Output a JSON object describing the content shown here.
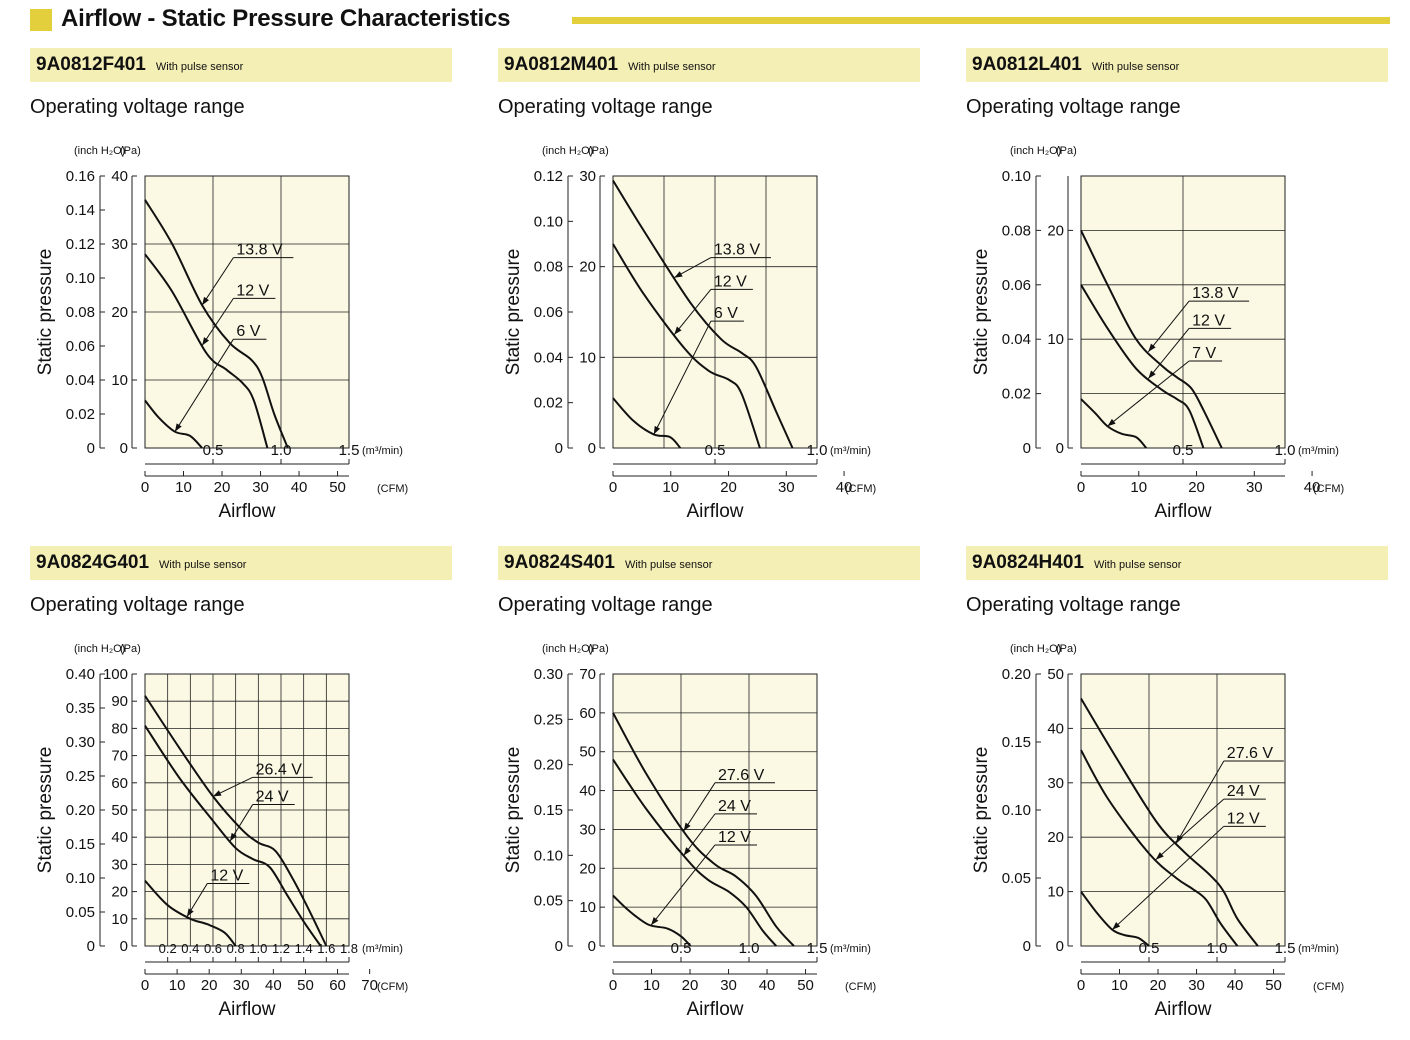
{
  "header": {
    "title": "Airflow - Static Pressure Characteristics"
  },
  "panels": [
    {
      "model": "9A0812F401",
      "sensor": "With pulse sensor",
      "subtitle": "Operating voltage range",
      "left_unit": "(inch H₂O)",
      "right_unit": "(Pa)",
      "x_unit_top": "(m³/min)",
      "x_unit_bottom": "(CFM)",
      "ylabel": "Static pressure",
      "xlabel": "Airflow"
    },
    {
      "model": "9A0812M401",
      "sensor": "With pulse sensor",
      "subtitle": "Operating voltage range",
      "left_unit": "(inch H₂O)",
      "right_unit": "(Pa)",
      "x_unit_top": "(m³/min)",
      "x_unit_bottom": "(CFM)",
      "ylabel": "Static pressure",
      "xlabel": "Airflow"
    },
    {
      "model": "9A0812L401",
      "sensor": "With pulse sensor",
      "subtitle": "Operating voltage range",
      "left_unit": "(inch H₂O)",
      "right_unit": "(Pa)",
      "x_unit_top": "(m³/min)",
      "x_unit_bottom": "(CFM)",
      "ylabel": "Static pressure",
      "xlabel": "Airflow"
    },
    {
      "model": "9A0824G401",
      "sensor": "With pulse sensor",
      "subtitle": "Operating voltage range",
      "left_unit": "(inch H₂O)",
      "right_unit": "(Pa)",
      "x_unit_top": "(m³/min)",
      "x_unit_bottom": "(CFM)",
      "ylabel": "Static pressure",
      "xlabel": "Airflow"
    },
    {
      "model": "9A0824S401",
      "sensor": "With pulse sensor",
      "subtitle": "Operating voltage range",
      "left_unit": "(inch H₂O)",
      "right_unit": "(Pa)",
      "x_unit_top": "(m³/min)",
      "x_unit_bottom": "(CFM)",
      "ylabel": "Static pressure",
      "xlabel": "Airflow"
    },
    {
      "model": "9A0824H401",
      "sensor": "With pulse sensor",
      "subtitle": "Operating voltage range",
      "left_unit": "(inch H₂O)",
      "right_unit": "(Pa)",
      "x_unit_top": "(m³/min)",
      "x_unit_bottom": "(CFM)",
      "ylabel": "Static pressure",
      "xlabel": "Airflow"
    }
  ],
  "colors": {
    "plot_bg": "#fbf8e3",
    "model_bar": "#f4efb5",
    "accent": "#e3cf3b",
    "grid": "#222222"
  },
  "chart_data": [
    {
      "type": "line",
      "model": "9A0812F401",
      "xlim_m3min": [
        0,
        1.5
      ],
      "ylim_pa": [
        0,
        40
      ],
      "ylim_inh2o": [
        0,
        0.16
      ],
      "x_ticks_m3min": [
        0.5,
        1.0,
        1.5
      ],
      "x_tick_labels_m3min": [
        "0.5",
        "1.0",
        "1.5"
      ],
      "cfm_ticks": [
        0,
        10,
        20,
        30,
        40,
        50
      ],
      "cfm_tick_labels": [
        "0",
        "10",
        "20",
        "30",
        "40",
        "50"
      ],
      "pa_ticks": [
        0,
        10,
        20,
        30,
        40
      ],
      "pa_tick_labels": [
        "0",
        "10",
        "20",
        "30",
        "40"
      ],
      "inh2o_ticks": [
        0,
        0.02,
        0.04,
        0.06,
        0.08,
        0.1,
        0.12,
        0.14,
        0.16
      ],
      "inh2o_tick_labels": [
        "0",
        "0.02",
        "0.04",
        "0.06",
        "0.08",
        "0.10",
        "0.12",
        "0.14",
        "0.16"
      ],
      "grid_x": [
        0.5,
        1.0
      ],
      "grid_y": [
        10,
        20,
        30
      ],
      "grid": true,
      "series": [
        {
          "name": "13.8 V",
          "label": "13.8 V",
          "x": [
            0,
            0.2,
            0.42,
            0.62,
            0.78,
            0.86,
            0.95,
            1.05
          ],
          "y": [
            36.5,
            30,
            21,
            15.5,
            13,
            10.5,
            5,
            0
          ],
          "pointer_at": 0.42,
          "label_at": [
            0.65,
            28
          ]
        },
        {
          "name": "12 V",
          "label": "12 V",
          "x": [
            0,
            0.2,
            0.45,
            0.6,
            0.72,
            0.8,
            0.9
          ],
          "y": [
            28.5,
            23,
            14,
            11.5,
            9.5,
            7,
            0
          ],
          "pointer_at": 0.42,
          "label_at": [
            0.65,
            22
          ]
        },
        {
          "name": "6 V",
          "label": "6 V",
          "x": [
            0,
            0.1,
            0.22,
            0.33,
            0.42
          ],
          "y": [
            7,
            4.5,
            2.4,
            1.8,
            0
          ],
          "pointer_at": 0.22,
          "label_at": [
            0.65,
            16
          ]
        }
      ]
    },
    {
      "type": "line",
      "model": "9A0812M401",
      "xlim_m3min": [
        0,
        1.0
      ],
      "ylim_pa": [
        0,
        30
      ],
      "ylim_inh2o": [
        0,
        0.12
      ],
      "x_ticks_m3min": [
        0.5,
        1.0
      ],
      "x_tick_labels_m3min": [
        "0.5",
        "1.0"
      ],
      "cfm_ticks": [
        0,
        10,
        20,
        30,
        40
      ],
      "cfm_tick_labels": [
        "0",
        "10",
        "20",
        "30",
        "40"
      ],
      "pa_ticks": [
        0,
        10,
        20,
        30
      ],
      "pa_tick_labels": [
        "0",
        "10",
        "20",
        "30"
      ],
      "inh2o_ticks": [
        0,
        0.02,
        0.04,
        0.06,
        0.08,
        0.1,
        0.12
      ],
      "inh2o_tick_labels": [
        "0",
        "0.02",
        "0.04",
        "0.06",
        "0.08",
        "0.10",
        "0.12"
      ],
      "grid_x": [
        0.25,
        0.5,
        0.75
      ],
      "grid_y": [
        10,
        20
      ],
      "grid": true,
      "series": [
        {
          "name": "13.8 V",
          "label": "13.8 V",
          "x": [
            0,
            0.15,
            0.38,
            0.53,
            0.63,
            0.7,
            0.8,
            0.88
          ],
          "y": [
            29.5,
            24,
            16,
            12,
            10.5,
            9,
            4,
            0
          ],
          "pointer_at": 0.3,
          "label_at": [
            0.48,
            21
          ]
        },
        {
          "name": "12 V",
          "label": "12 V",
          "x": [
            0,
            0.15,
            0.35,
            0.47,
            0.57,
            0.63,
            0.72
          ],
          "y": [
            22.5,
            17,
            11,
            8.5,
            7.5,
            6,
            0
          ],
          "pointer_at": 0.3,
          "label_at": [
            0.48,
            17.5
          ]
        },
        {
          "name": "6 V",
          "label": "6 V",
          "x": [
            0,
            0.1,
            0.2,
            0.28,
            0.33
          ],
          "y": [
            5.5,
            3,
            1.5,
            1.2,
            0
          ],
          "pointer_at": 0.2,
          "label_at": [
            0.48,
            14
          ]
        }
      ]
    },
    {
      "type": "line",
      "model": "9A0812L401",
      "xlim_m3min": [
        0,
        1.0
      ],
      "ylim_pa": [
        0,
        25
      ],
      "ylim_inh2o": [
        0,
        0.1
      ],
      "x_ticks_m3min": [
        0.5,
        1.0
      ],
      "x_tick_labels_m3min": [
        "0.5",
        "1.0"
      ],
      "cfm_ticks": [
        0,
        10,
        20,
        30,
        40
      ],
      "cfm_tick_labels": [
        "0",
        "10",
        "20",
        "30",
        "40"
      ],
      "pa_ticks": [
        0,
        10,
        20
      ],
      "pa_tick_labels": [
        "0",
        "10",
        "20"
      ],
      "inh2o_ticks": [
        0,
        0.02,
        0.04,
        0.06,
        0.08,
        0.1
      ],
      "inh2o_tick_labels": [
        "0",
        "0.02",
        "0.04",
        "0.06",
        "0.08",
        "0.10"
      ],
      "grid_x": [
        0.5
      ],
      "grid_y": [
        5,
        10,
        15,
        20
      ],
      "grid": true,
      "series": [
        {
          "name": "13.8 V",
          "label": "13.8 V",
          "x": [
            0,
            0.13,
            0.27,
            0.4,
            0.47,
            0.54,
            0.6,
            0.69
          ],
          "y": [
            20,
            15,
            10,
            7.5,
            6.5,
            5.5,
            3.5,
            0
          ],
          "pointer_at": 0.33,
          "label_at": [
            0.53,
            13.5
          ]
        },
        {
          "name": "12 V",
          "label": "12 V",
          "x": [
            0,
            0.13,
            0.27,
            0.4,
            0.47,
            0.53,
            0.6
          ],
          "y": [
            15,
            11,
            7.3,
            5.3,
            4.5,
            3.5,
            0
          ],
          "pointer_at": 0.33,
          "label_at": [
            0.53,
            11
          ]
        },
        {
          "name": "7 V",
          "label": "7 V",
          "x": [
            0,
            0.07,
            0.13,
            0.2,
            0.27,
            0.32
          ],
          "y": [
            4.5,
            3.2,
            2,
            1.3,
            1,
            0
          ],
          "pointer_at": 0.13,
          "label_at": [
            0.53,
            8
          ]
        }
      ]
    },
    {
      "type": "line",
      "model": "9A0824G401",
      "xlim_m3min": [
        0,
        1.8
      ],
      "ylim_pa": [
        0,
        100
      ],
      "ylim_inh2o": [
        0,
        0.4
      ],
      "x_ticks_m3min": [
        0.2,
        0.4,
        0.6,
        0.8,
        1.0,
        1.2,
        1.4,
        1.6,
        1.8
      ],
      "x_tick_labels_m3min": [
        "0.2",
        "0.4",
        "0.6",
        "0.8",
        "1.0",
        "1.2",
        "1.4",
        "1.6",
        "1.8"
      ],
      "cfm_ticks": [
        0,
        10,
        20,
        30,
        40,
        50,
        60,
        70
      ],
      "cfm_tick_labels": [
        "0",
        "10",
        "20",
        "30",
        "40",
        "50",
        "60",
        "70"
      ],
      "pa_ticks": [
        0,
        10,
        20,
        30,
        40,
        50,
        60,
        70,
        80,
        90,
        100
      ],
      "pa_tick_labels": [
        "0",
        "10",
        "20",
        "30",
        "40",
        "50",
        "60",
        "70",
        "80",
        "90",
        "100"
      ],
      "inh2o_ticks": [
        0,
        0.05,
        0.1,
        0.15,
        0.2,
        0.25,
        0.3,
        0.35,
        0.4
      ],
      "inh2o_tick_labels": [
        "0",
        "0.05",
        "0.10",
        "0.15",
        "0.20",
        "0.25",
        "0.30",
        "0.35",
        "0.40"
      ],
      "grid_x": [
        0.2,
        0.4,
        0.6,
        0.8,
        1.0,
        1.2,
        1.4,
        1.6
      ],
      "grid_y": [
        10,
        20,
        30,
        40,
        50,
        60,
        70,
        80,
        90
      ],
      "grid": true,
      "series": [
        {
          "name": "26.4 V",
          "label": "26.4 V",
          "x": [
            0,
            0.3,
            0.6,
            0.85,
            1.0,
            1.15,
            1.3,
            1.45,
            1.6
          ],
          "y": [
            92,
            73,
            55,
            43,
            38,
            35,
            25,
            13,
            0
          ],
          "pointer_at": 0.6,
          "label_at": [
            0.95,
            62
          ]
        },
        {
          "name": "24 V",
          "label": "24 V",
          "x": [
            0,
            0.3,
            0.6,
            0.8,
            0.95,
            1.1,
            1.25,
            1.4,
            1.55
          ],
          "y": [
            81,
            62,
            46,
            36,
            32,
            29,
            19,
            9,
            0
          ],
          "pointer_at": 0.75,
          "label_at": [
            0.95,
            52
          ]
        },
        {
          "name": "12 V",
          "label": "12 V",
          "x": [
            0,
            0.2,
            0.4,
            0.55,
            0.7,
            0.8
          ],
          "y": [
            24,
            15,
            10,
            8,
            5,
            0
          ],
          "pointer_at": 0.37,
          "label_at": [
            0.55,
            23
          ]
        }
      ]
    },
    {
      "type": "line",
      "model": "9A0824S401",
      "xlim_m3min": [
        0,
        1.5
      ],
      "ylim_pa": [
        0,
        70
      ],
      "ylim_inh2o": [
        0,
        0.3
      ],
      "x_ticks_m3min": [
        0.5,
        1.0,
        1.5
      ],
      "x_tick_labels_m3min": [
        "0.5",
        "1.0",
        "1.5"
      ],
      "cfm_ticks": [
        0,
        10,
        20,
        30,
        40,
        50
      ],
      "cfm_tick_labels": [
        "0",
        "10",
        "20",
        "30",
        "40",
        "50"
      ],
      "pa_ticks": [
        0,
        10,
        20,
        30,
        40,
        50,
        60,
        70
      ],
      "pa_tick_labels": [
        "0",
        "10",
        "20",
        "30",
        "40",
        "50",
        "60",
        "70"
      ],
      "inh2o_ticks": [
        0,
        0.05,
        0.1,
        0.15,
        0.2,
        0.25,
        0.3
      ],
      "inh2o_tick_labels": [
        "0",
        "0.05",
        "0.10",
        "0.15",
        "0.20",
        "0.25",
        "0.30"
      ],
      "grid_x": [
        0.5,
        1.0
      ],
      "grid_y": [
        10,
        20,
        30,
        40,
        50,
        60
      ],
      "grid": true,
      "series": [
        {
          "name": "27.6 V",
          "label": "27.6 V",
          "x": [
            0,
            0.25,
            0.55,
            0.75,
            0.9,
            1.05,
            1.2,
            1.33
          ],
          "y": [
            60,
            44,
            28,
            21,
            18,
            13,
            5,
            0
          ],
          "pointer_at": 0.52,
          "label_at": [
            0.75,
            42
          ]
        },
        {
          "name": "24 V",
          "label": "24 V",
          "x": [
            0,
            0.25,
            0.55,
            0.7,
            0.85,
            0.98,
            1.1,
            1.2
          ],
          "y": [
            48,
            35,
            22,
            17,
            14,
            10,
            4,
            0
          ],
          "pointer_at": 0.52,
          "label_at": [
            0.75,
            34
          ]
        },
        {
          "name": "12 V",
          "label": "12 V",
          "x": [
            0,
            0.12,
            0.26,
            0.4,
            0.5,
            0.57
          ],
          "y": [
            13,
            9,
            5.5,
            4.5,
            2.5,
            0
          ],
          "pointer_at": 0.28,
          "label_at": [
            0.75,
            26
          ]
        }
      ]
    },
    {
      "type": "line",
      "model": "9A0824H401",
      "xlim_m3min": [
        0,
        1.5
      ],
      "ylim_pa": [
        0,
        50
      ],
      "ylim_inh2o": [
        0,
        0.2
      ],
      "x_ticks_m3min": [
        0.5,
        1.0,
        1.5
      ],
      "x_tick_labels_m3min": [
        "0.5",
        "1.0",
        "1.5"
      ],
      "cfm_ticks": [
        0,
        10,
        20,
        30,
        40,
        50
      ],
      "cfm_tick_labels": [
        "0",
        "10",
        "20",
        "30",
        "40",
        "50"
      ],
      "pa_ticks": [
        0,
        10,
        20,
        30,
        40,
        50
      ],
      "pa_tick_labels": [
        "0",
        "10",
        "20",
        "30",
        "40",
        "50"
      ],
      "inh2o_ticks": [
        0,
        0.05,
        0.1,
        0.15,
        0.2
      ],
      "inh2o_tick_labels": [
        "0",
        "0.05",
        "0.10",
        "0.15",
        "0.20"
      ],
      "grid_x": [
        0.5,
        1.0
      ],
      "grid_y": [
        10,
        20,
        30,
        40
      ],
      "grid": true,
      "series": [
        {
          "name": "27.6 V",
          "label": "27.6 V",
          "x": [
            0,
            0.25,
            0.55,
            0.75,
            0.95,
            1.05,
            1.15,
            1.3
          ],
          "y": [
            45.5,
            35,
            23,
            17.5,
            13,
            10,
            5,
            0
          ],
          "pointer_at": 0.7,
          "label_at": [
            1.05,
            34
          ]
        },
        {
          "name": "24 V",
          "label": "24 V",
          "x": [
            0,
            0.2,
            0.5,
            0.7,
            0.82,
            0.92,
            1.03,
            1.15
          ],
          "y": [
            36,
            27,
            17,
            12.5,
            10.5,
            8.5,
            4,
            0
          ],
          "pointer_at": 0.55,
          "label_at": [
            1.05,
            27
          ]
        },
        {
          "name": "12 V",
          "label": "12 V",
          "x": [
            0,
            0.12,
            0.23,
            0.32,
            0.42,
            0.5
          ],
          "y": [
            10,
            6,
            3,
            2,
            1.5,
            0
          ],
          "pointer_at": 0.23,
          "label_at": [
            1.05,
            22
          ]
        }
      ]
    }
  ]
}
